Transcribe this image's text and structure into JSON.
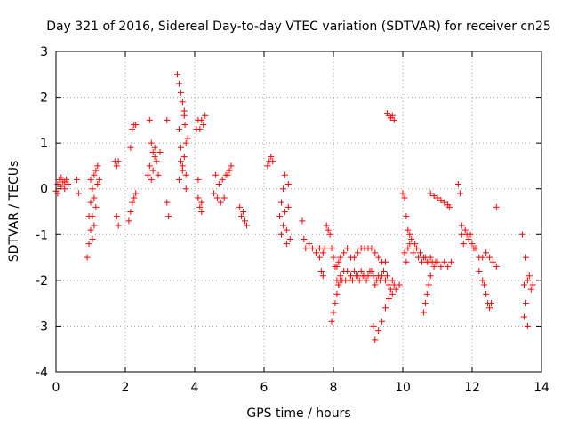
{
  "chart_data": {
    "type": "scatter",
    "title": "Day 321 of 2016, Sidereal Day-to-day VTEC variation (SDTVAR) for receiver cn25",
    "xlabel": "GPS time / hours",
    "ylabel": "SDTVAR / TECUs",
    "xlim": [
      0,
      14
    ],
    "ylim": [
      -4,
      3
    ],
    "xticks": [
      0,
      2,
      4,
      6,
      8,
      10,
      12,
      14
    ],
    "yticks": [
      -4,
      -3,
      -2,
      -1,
      0,
      1,
      2,
      3
    ],
    "grid": true,
    "marker": "+",
    "marker_color": "#ff0000",
    "series": [
      {
        "name": "SDTVAR",
        "x": [
          0.0,
          0.05,
          0.1,
          0.15,
          0.2,
          0.25,
          0.3,
          0.35,
          0.05,
          0.15,
          0.25,
          0.6,
          0.65,
          0.9,
          0.95,
          0.95,
          1.0,
          1.0,
          1.0,
          1.05,
          1.05,
          1.05,
          1.1,
          1.1,
          1.1,
          1.15,
          1.15,
          1.2,
          1.2,
          1.25,
          1.7,
          1.75,
          1.75,
          1.8,
          1.8,
          2.1,
          2.15,
          2.15,
          2.2,
          2.2,
          2.25,
          2.25,
          2.3,
          2.3,
          2.65,
          2.7,
          2.7,
          2.75,
          2.75,
          2.8,
          2.8,
          2.85,
          2.85,
          2.9,
          2.95,
          3.0,
          3.2,
          3.2,
          3.25,
          3.5,
          3.55,
          3.55,
          3.6,
          3.6,
          3.65,
          3.65,
          3.7,
          3.7,
          3.72,
          3.75,
          3.75,
          3.8,
          3.55,
          3.6,
          3.65,
          3.7,
          3.75,
          4.05,
          4.1,
          4.1,
          4.15,
          4.15,
          4.2,
          4.2,
          4.25,
          4.3,
          4.1,
          4.2,
          4.55,
          4.6,
          4.65,
          4.7,
          4.75,
          4.8,
          4.85,
          4.9,
          4.95,
          5.0,
          5.05,
          5.3,
          5.35,
          5.4,
          5.45,
          5.5,
          6.1,
          6.15,
          6.2,
          6.25,
          6.45,
          6.5,
          6.5,
          6.55,
          6.55,
          6.6,
          6.6,
          6.65,
          6.65,
          6.7,
          6.7,
          6.75,
          7.1,
          7.15,
          7.2,
          7.3,
          7.4,
          7.5,
          7.6,
          7.7,
          7.75,
          7.8,
          7.85,
          7.9,
          7.95,
          8.0,
          8.05,
          8.1,
          8.15,
          8.2,
          8.3,
          8.4,
          8.5,
          8.6,
          8.7,
          8.8,
          8.9,
          9.0,
          9.1,
          9.2,
          9.3,
          9.4,
          9.5,
          7.6,
          7.65,
          7.7,
          8.1,
          8.15,
          8.2,
          8.25,
          8.3,
          8.35,
          8.4,
          8.45,
          8.5,
          8.55,
          8.6,
          8.65,
          8.7,
          8.75,
          8.8,
          8.85,
          8.9,
          8.95,
          9.0,
          9.05,
          9.1,
          9.15,
          9.2,
          9.25,
          9.3,
          9.35,
          9.4,
          9.45,
          9.5,
          9.55,
          9.6,
          9.65,
          9.7,
          9.75,
          7.95,
          8.0,
          8.05,
          8.1,
          8.15,
          8.2,
          9.15,
          9.2,
          9.3,
          9.4,
          9.5,
          9.6,
          9.7,
          9.8,
          9.9,
          9.55,
          9.6,
          9.65,
          9.7,
          9.75,
          10.0,
          10.05,
          10.05,
          10.1,
          10.1,
          10.15,
          10.15,
          10.2,
          10.2,
          10.25,
          10.3,
          10.35,
          10.4,
          10.45,
          10.5,
          10.55,
          10.6,
          10.65,
          10.7,
          10.75,
          10.8,
          10.85,
          10.9,
          10.95,
          11.0,
          11.1,
          11.2,
          11.3,
          11.4,
          10.6,
          10.65,
          10.7,
          10.75,
          10.8,
          10.8,
          10.9,
          11.0,
          11.1,
          11.2,
          11.3,
          11.35,
          11.6,
          11.65,
          11.7,
          11.7,
          11.75,
          11.8,
          11.85,
          11.9,
          11.95,
          12.0,
          12.05,
          12.1,
          12.2,
          12.3,
          12.4,
          12.5,
          12.6,
          12.7,
          12.2,
          12.3,
          12.35,
          12.4,
          12.45,
          12.5,
          12.55,
          12.7,
          13.45,
          13.5,
          13.5,
          13.55,
          13.55,
          13.6,
          13.6,
          13.65,
          13.7,
          13.75
        ],
        "y": [
          -0.05,
          0.1,
          0.2,
          0.25,
          0.15,
          0.0,
          0.2,
          0.1,
          -0.1,
          0.05,
          0.15,
          0.2,
          -0.1,
          -1.5,
          -1.2,
          -0.6,
          -0.9,
          0.2,
          -0.3,
          -1.1,
          0.0,
          -0.6,
          -0.8,
          0.3,
          -0.2,
          -0.4,
          0.4,
          0.1,
          0.5,
          0.2,
          0.6,
          0.5,
          -0.6,
          0.6,
          -0.8,
          -0.7,
          -0.5,
          0.9,
          -0.3,
          1.3,
          -0.2,
          1.4,
          -0.1,
          1.4,
          0.3,
          1.5,
          0.5,
          1.0,
          0.2,
          0.8,
          0.4,
          0.7,
          0.9,
          0.6,
          0.3,
          0.8,
          1.5,
          -0.3,
          -0.6,
          2.5,
          2.3,
          1.3,
          2.1,
          0.9,
          1.9,
          0.5,
          1.7,
          0.7,
          1.4,
          1.0,
          0.3,
          1.1,
          0.2,
          0.6,
          0.4,
          1.6,
          0.0,
          1.3,
          1.5,
          -0.2,
          1.3,
          -0.4,
          1.5,
          -0.3,
          1.4,
          1.6,
          0.2,
          -0.5,
          -0.1,
          0.3,
          -0.2,
          0.1,
          -0.3,
          0.2,
          -0.2,
          0.3,
          0.3,
          0.4,
          0.5,
          -0.4,
          -0.6,
          -0.5,
          -0.7,
          -0.8,
          0.5,
          0.6,
          0.7,
          0.6,
          -0.6,
          -0.3,
          -1.0,
          0.0,
          -0.8,
          -0.5,
          0.3,
          -0.9,
          -1.2,
          -0.4,
          0.1,
          -1.1,
          -0.7,
          -1.1,
          -1.3,
          -1.2,
          -1.3,
          -1.4,
          -1.3,
          -1.4,
          -1.3,
          -0.8,
          -0.9,
          -1.0,
          -1.3,
          -1.5,
          -1.7,
          -1.7,
          -1.6,
          -1.5,
          -1.4,
          -1.3,
          -1.5,
          -1.5,
          -1.4,
          -1.3,
          -1.3,
          -1.3,
          -1.3,
          -1.4,
          -1.5,
          -1.6,
          -1.6,
          -1.5,
          -1.8,
          -1.9,
          -2.0,
          -2.1,
          -1.9,
          -2.0,
          -1.8,
          -2.0,
          -1.8,
          -2.0,
          -1.9,
          -2.0,
          -1.8,
          -1.9,
          -1.9,
          -2.0,
          -1.8,
          -1.9,
          -1.9,
          -2.0,
          -1.9,
          -1.8,
          -1.8,
          -1.9,
          -2.1,
          -2.0,
          -1.9,
          -2.0,
          -1.9,
          -1.8,
          -2.0,
          -1.9,
          -2.1,
          -2.2,
          -2.0,
          -2.1,
          -2.9,
          -2.7,
          -2.5,
          -2.3,
          -2.1,
          -2.0,
          -3.0,
          -3.3,
          -3.1,
          -2.9,
          -2.6,
          -2.4,
          -2.3,
          -2.2,
          -2.1,
          1.65,
          1.6,
          1.55,
          1.6,
          1.5,
          -0.1,
          -0.2,
          -1.4,
          -0.6,
          -1.6,
          -0.9,
          -1.3,
          -1.2,
          -1.0,
          -1.1,
          -1.4,
          -1.2,
          -1.3,
          -1.5,
          -1.4,
          -1.6,
          -1.5,
          -1.5,
          -1.6,
          -1.6,
          -1.5,
          -1.6,
          -1.7,
          -1.6,
          -1.6,
          -1.7,
          -1.6,
          -1.7,
          -1.6,
          -2.7,
          -2.5,
          -2.3,
          -2.1,
          -1.9,
          -0.1,
          -0.15,
          -0.2,
          -0.25,
          -0.3,
          -0.35,
          -0.4,
          0.1,
          -0.1,
          -1.0,
          -0.8,
          -1.2,
          -0.9,
          -1.0,
          -1.1,
          -1.0,
          -1.2,
          -1.3,
          -1.3,
          -1.5,
          -1.5,
          -1.4,
          -1.5,
          -1.6,
          -1.7,
          -1.8,
          -2.0,
          -2.1,
          -2.3,
          -2.5,
          -2.6,
          -2.5,
          -0.4,
          -1.0,
          -2.1,
          -2.8,
          -1.5,
          -2.5,
          -2.0,
          -3.0,
          -1.9,
          -2.2,
          -2.1
        ]
      }
    ]
  }
}
